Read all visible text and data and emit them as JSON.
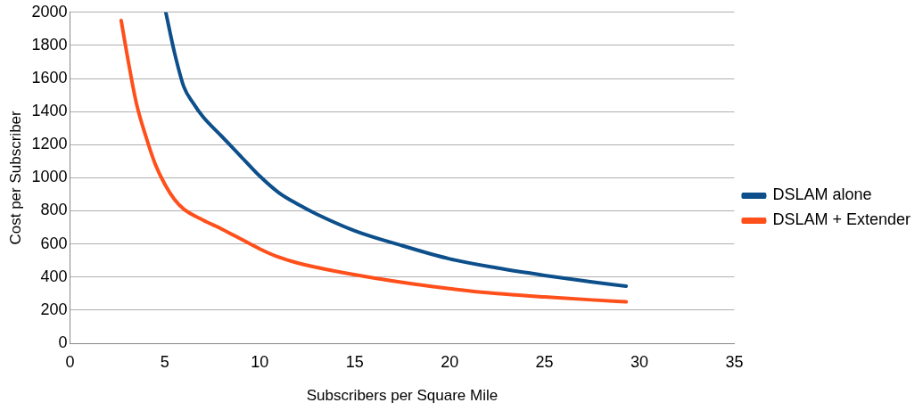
{
  "chart_data": {
    "type": "line",
    "xlabel": "Subscribers per Square Mile",
    "ylabel": "Cost per Subscriber",
    "xlim": [
      0,
      35
    ],
    "xticks": [
      0,
      5,
      10,
      15,
      20,
      25,
      30,
      35
    ],
    "ylim": [
      0,
      2000
    ],
    "yticks": [
      0,
      200,
      400,
      600,
      800,
      1000,
      1200,
      1400,
      1600,
      1800,
      2000
    ],
    "grid": "y",
    "legend": "right",
    "marker": "none",
    "line_style": "solid",
    "series": [
      {
        "name": "DSLAM alone",
        "color": "#0d4f8b",
        "x": [
          5.05,
          5.5,
          6,
          6.5,
          7,
          8,
          9,
          10,
          11,
          12,
          13,
          15,
          17.5,
          20,
          22.5,
          25,
          27.5,
          29.3
        ],
        "values": [
          2000,
          1760,
          1550,
          1450,
          1370,
          1250,
          1130,
          1010,
          910,
          840,
          780,
          680,
          590,
          510,
          455,
          410,
          370,
          345
        ]
      },
      {
        "name": "DSLAM + Extender",
        "color": "#ff4f1a",
        "x": [
          2.7,
          3,
          3.5,
          4,
          4.5,
          5,
          5.5,
          6,
          7,
          8,
          9,
          10,
          11,
          12,
          14,
          16,
          18,
          20,
          22.5,
          25,
          27.5,
          29.3
        ],
        "values": [
          1950,
          1750,
          1450,
          1250,
          1080,
          960,
          870,
          810,
          745,
          690,
          630,
          570,
          520,
          485,
          435,
          395,
          360,
          330,
          300,
          280,
          262,
          250
        ]
      }
    ]
  }
}
